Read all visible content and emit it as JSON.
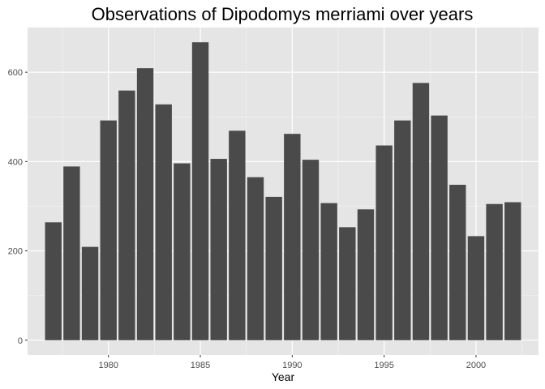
{
  "chart_data": {
    "type": "bar",
    "title": "Observations of Dipodomys merriami over years",
    "xlabel": "Year",
    "ylabel": "",
    "x": [
      1977,
      1978,
      1979,
      1980,
      1981,
      1982,
      1983,
      1984,
      1985,
      1986,
      1987,
      1988,
      1989,
      1990,
      1991,
      1992,
      1993,
      1994,
      1995,
      1996,
      1997,
      1998,
      1999,
      2000,
      2001,
      2002
    ],
    "values": [
      264,
      389,
      209,
      492,
      559,
      609,
      528,
      396,
      667,
      406,
      469,
      365,
      321,
      462,
      404,
      307,
      253,
      293,
      436,
      492,
      576,
      503,
      348,
      233,
      305,
      309
    ],
    "xlim": [
      1975.6,
      2003.4
    ],
    "ylim": [
      -33,
      700
    ],
    "xticks": [
      1980,
      1985,
      1990,
      1995,
      2000
    ],
    "yticks": [
      0,
      200,
      400,
      600
    ],
    "grid": true,
    "legend": "none",
    "colors": {
      "panel": "#e5e5e5",
      "grid_major": "#ffffff",
      "grid_minor": "#f2f2f2",
      "bar": "#4a4a4a",
      "tick_text": "#4d4d4d",
      "tick_mark": "#333333"
    }
  }
}
